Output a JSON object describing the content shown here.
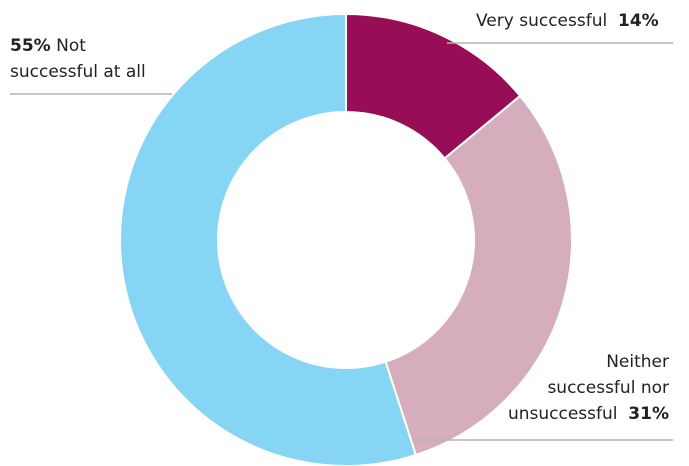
{
  "chart_data": {
    "type": "pie",
    "title": "",
    "donut": true,
    "categories": [
      "Very successful",
      "Neither successful nor unsuccessful",
      "Not successful at all"
    ],
    "values": [
      14,
      31,
      55
    ],
    "unit": "%",
    "colors": [
      "#970e57",
      "#d5adbd",
      "#87d5f5"
    ],
    "slice_labels": [
      {
        "line1": "Very successful",
        "line2": "",
        "value": "14%"
      },
      {
        "line1": "Neither",
        "line2": "successful nor",
        "line3": "unsuccessful",
        "value": "31%"
      },
      {
        "line1": "Not",
        "line2": "successful at all",
        "value": "55%"
      }
    ],
    "legend": "none"
  }
}
